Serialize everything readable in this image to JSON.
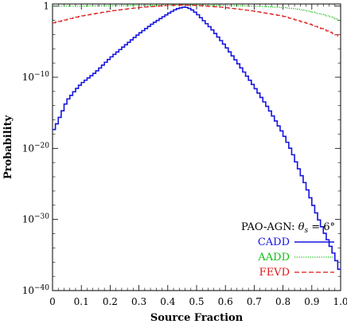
{
  "chart_data": {
    "type": "line",
    "xlabel": "Source Fraction",
    "ylabel": "Probability",
    "xlim": [
      0,
      1
    ],
    "ylim_log10": [
      -40,
      0.3
    ],
    "yscale": "log",
    "x_ticks": [
      0,
      0.1,
      0.2,
      0.3,
      0.4,
      0.5,
      0.6,
      0.7,
      0.8,
      0.9,
      1.0
    ],
    "x_tick_labels": [
      "0",
      "0.1",
      "0.2",
      "0.3",
      "0.4",
      "0.5",
      "0.6",
      "0.7",
      "0.8",
      "0.9",
      "1.0"
    ],
    "y_ticks": [
      {
        "exp": 0,
        "base": "1",
        "sup": ""
      },
      {
        "exp": -10,
        "base": "10",
        "sup": "−10"
      },
      {
        "exp": -20,
        "base": "10",
        "sup": "−20"
      },
      {
        "exp": -30,
        "base": "10",
        "sup": "−30"
      },
      {
        "exp": -40,
        "base": "10",
        "sup": "−40"
      }
    ],
    "legend": {
      "title_prefix": "PAO-AGN: ",
      "title_symbol": "θ",
      "title_subscript": "s",
      "title_suffix": " = 6°",
      "placement": "bottom-right"
    },
    "series": [
      {
        "name": "CADD",
        "color": "#1515e0",
        "style": "solid",
        "x": [
          0.0,
          0.01,
          0.03,
          0.05,
          0.08,
          0.1,
          0.15,
          0.2,
          0.25,
          0.3,
          0.35,
          0.4,
          0.43,
          0.46,
          0.48,
          0.5,
          0.55,
          0.6,
          0.65,
          0.7,
          0.75,
          0.8,
          0.83,
          0.85,
          0.88,
          0.9,
          0.92,
          0.94,
          0.96,
          0.98,
          1.0
        ],
        "log10": [
          -17.7,
          -17.0,
          -15.2,
          -13.3,
          -11.8,
          -10.9,
          -9.3,
          -7.3,
          -5.6,
          -3.9,
          -2.4,
          -1.1,
          -0.4,
          -0.1,
          -0.4,
          -1.0,
          -3.1,
          -5.6,
          -8.4,
          -11.3,
          -14.4,
          -17.9,
          -20.4,
          -22.4,
          -25.3,
          -27.5,
          -29.6,
          -31.5,
          -33.3,
          -35.2,
          -37.6
        ]
      },
      {
        "name": "AADD",
        "color": "#10c010",
        "style": "dotted",
        "x": [
          0.0,
          0.05,
          0.1,
          0.2,
          0.3,
          0.4,
          0.5,
          0.6,
          0.7,
          0.8,
          0.85,
          0.9,
          0.95,
          0.98,
          1.0
        ],
        "log10": [
          0.0,
          0.0,
          0.0,
          0.05,
          0.1,
          0.15,
          0.15,
          0.1,
          0.0,
          -0.2,
          -0.4,
          -0.8,
          -1.3,
          -1.7,
          -2.1
        ]
      },
      {
        "name": "FEVD",
        "color": "#e01515",
        "style": "dashed",
        "x": [
          0.0,
          0.05,
          0.1,
          0.2,
          0.3,
          0.4,
          0.45,
          0.5,
          0.6,
          0.7,
          0.8,
          0.85,
          0.9,
          0.95,
          1.0
        ],
        "log10": [
          -2.4,
          -1.9,
          -1.4,
          -0.7,
          -0.2,
          0.1,
          0.15,
          0.1,
          -0.2,
          -0.7,
          -1.4,
          -2.0,
          -2.6,
          -3.4,
          -4.3
        ]
      }
    ]
  }
}
